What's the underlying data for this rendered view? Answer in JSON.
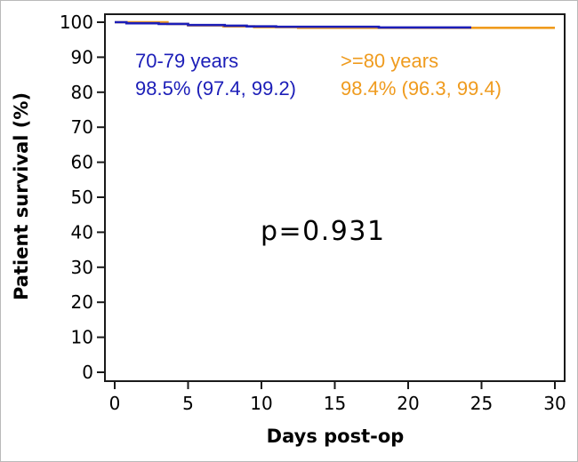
{
  "chart_data": {
    "type": "line",
    "subtype": "kaplan_meier_step",
    "title": "",
    "xlabel": "Days post-op",
    "ylabel": "Patient survival (%)",
    "xlim": [
      0,
      30
    ],
    "ylim": [
      0,
      100
    ],
    "xticks": [
      0,
      5,
      10,
      15,
      20,
      25,
      30
    ],
    "yticks": [
      100,
      90,
      80,
      70,
      60,
      50,
      40,
      30,
      20,
      10,
      0
    ],
    "grid": false,
    "legend_position": "inline top-left annotations",
    "axis_color": "#1a1a1a",
    "tick_label_color": "#000000",
    "series": [
      {
        "name": "70-79 years",
        "estimate": "98.5% (97.4, 99.2)",
        "color": "#1c1eb8",
        "step_points": [
          [
            0,
            100
          ],
          [
            0.8,
            99.7
          ],
          [
            3,
            99.5
          ],
          [
            5,
            99.2
          ],
          [
            7.5,
            99.0
          ],
          [
            9,
            98.8
          ],
          [
            11,
            98.7
          ],
          [
            18,
            98.5
          ]
        ],
        "end_x": 24.3
      },
      {
        "name": ">=80 years",
        "estimate": "98.4% (96.3, 99.4)",
        "color": "#ef9b1e",
        "step_points": [
          [
            0,
            100
          ],
          [
            3.6,
            99.5
          ],
          [
            5,
            99.1
          ],
          [
            7.4,
            98.8
          ],
          [
            9.5,
            98.6
          ],
          [
            12.5,
            98.4
          ]
        ],
        "end_x": 30
      }
    ],
    "annotation": {
      "text": "p=0.931"
    }
  }
}
